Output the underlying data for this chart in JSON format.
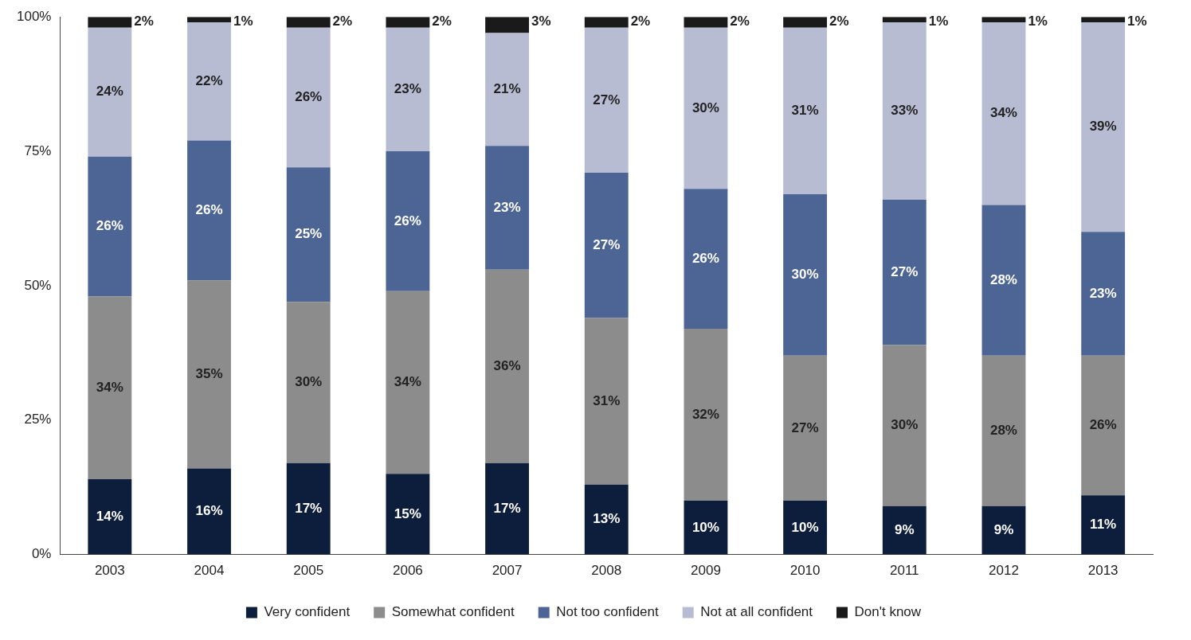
{
  "chart_data": {
    "type": "bar",
    "stacked": true,
    "legend": "bottom",
    "grid": false,
    "categories": [
      "2003",
      "2004",
      "2005",
      "2006",
      "2007",
      "2008",
      "2009",
      "2010",
      "2011",
      "2012",
      "2013"
    ],
    "ylim": [
      0,
      100
    ],
    "yticks": [
      {
        "value": 0,
        "label": "0%"
      },
      {
        "value": 25,
        "label": "25%"
      },
      {
        "value": 50,
        "label": "50%"
      },
      {
        "value": 75,
        "label": "75%"
      },
      {
        "value": 100,
        "label": "100%"
      }
    ],
    "series": [
      {
        "name": "Very confident",
        "color": "#0d1e3d",
        "values": [
          14,
          16,
          17,
          15,
          17,
          13,
          10,
          10,
          9,
          9,
          11
        ],
        "value_labels": [
          "14%",
          "16%",
          "17%",
          "15%",
          "17%",
          "13%",
          "10%",
          "10%",
          "9%",
          "9%",
          "11%"
        ]
      },
      {
        "name": "Somewhat confident",
        "color": "#8c8c8c",
        "values": [
          34,
          35,
          30,
          34,
          36,
          31,
          32,
          27,
          30,
          28,
          26
        ],
        "value_labels": [
          "34%",
          "35%",
          "30%",
          "34%",
          "36%",
          "31%",
          "32%",
          "27%",
          "30%",
          "28%",
          "26%"
        ]
      },
      {
        "name": "Not too confident",
        "color": "#4d6594",
        "values": [
          26,
          26,
          25,
          26,
          23,
          27,
          26,
          30,
          27,
          28,
          23
        ],
        "value_labels": [
          "26%",
          "26%",
          "25%",
          "26%",
          "23%",
          "27%",
          "26%",
          "30%",
          "27%",
          "28%",
          "23%"
        ]
      },
      {
        "name": "Not at all confident",
        "color": "#b7bcd3",
        "values": [
          24,
          22,
          26,
          23,
          21,
          27,
          30,
          31,
          33,
          34,
          39
        ],
        "value_labels": [
          "24%",
          "22%",
          "26%",
          "23%",
          "21%",
          "27%",
          "30%",
          "31%",
          "33%",
          "34%",
          "39%"
        ]
      },
      {
        "name": "Don't know",
        "color": "#1a1a1a",
        "values": [
          2,
          1,
          2,
          2,
          3,
          2,
          2,
          2,
          1,
          1,
          1
        ],
        "value_labels": [
          "2%",
          "1%",
          "2%",
          "2%",
          "3%",
          "2%",
          "2%",
          "2%",
          "1%",
          "1%",
          "1%"
        ]
      }
    ]
  }
}
